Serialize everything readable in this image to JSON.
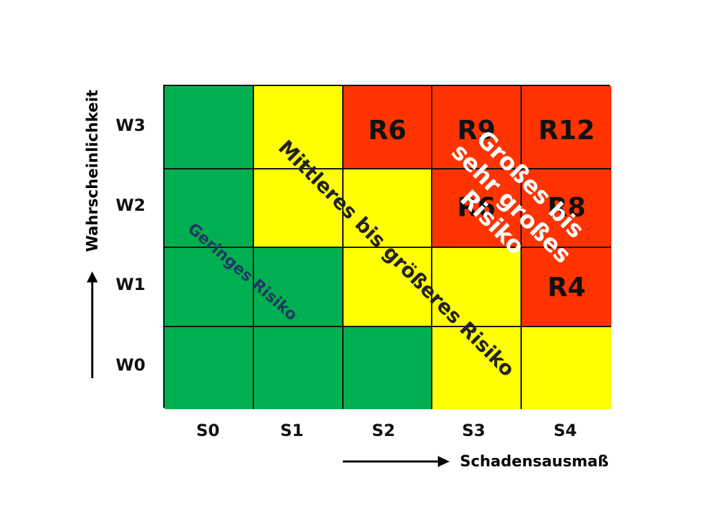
{
  "axes": {
    "y_title": "Wahrscheinlichkeit",
    "x_title": "Schadensausmaß",
    "rows": [
      "W3",
      "W2",
      "W1",
      "W0"
    ],
    "cols": [
      "S0",
      "S1",
      "S2",
      "S3",
      "S4"
    ]
  },
  "colors": {
    "green": "#00b050",
    "yellow": "#ffff00",
    "red": "#ff3300"
  },
  "matrix": [
    [
      {
        "color": "green",
        "label": ""
      },
      {
        "color": "yellow",
        "label": ""
      },
      {
        "color": "red",
        "label": "R6"
      },
      {
        "color": "red",
        "label": "R9"
      },
      {
        "color": "red",
        "label": "R12"
      }
    ],
    [
      {
        "color": "green",
        "label": ""
      },
      {
        "color": "yellow",
        "label": ""
      },
      {
        "color": "yellow",
        "label": ""
      },
      {
        "color": "red",
        "label": "R6"
      },
      {
        "color": "red",
        "label": "R8"
      }
    ],
    [
      {
        "color": "green",
        "label": ""
      },
      {
        "color": "green",
        "label": ""
      },
      {
        "color": "yellow",
        "label": ""
      },
      {
        "color": "yellow",
        "label": ""
      },
      {
        "color": "red",
        "label": "R4"
      }
    ],
    [
      {
        "color": "green",
        "label": ""
      },
      {
        "color": "green",
        "label": ""
      },
      {
        "color": "green",
        "label": ""
      },
      {
        "color": "yellow",
        "label": ""
      },
      {
        "color": "yellow",
        "label": ""
      }
    ]
  ],
  "zones": {
    "low": "Geringes Risiko",
    "mid": "Mittleres bis größeres Risiko",
    "high": "Großes bis sehr großes Risiko"
  }
}
